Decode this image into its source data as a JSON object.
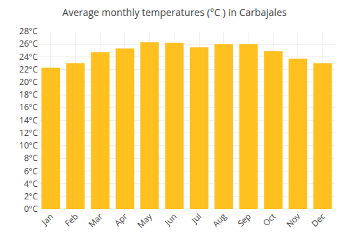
{
  "chart_data": {
    "type": "bar",
    "title": "Average monthly temperatures (°C ) in Carbajales",
    "categories": [
      "Jan",
      "Feb",
      "Mar",
      "Apr",
      "May",
      "Jun",
      "Jul",
      "Aug",
      "Sep",
      "Oct",
      "Nov",
      "Dec"
    ],
    "values": [
      22.3,
      23.0,
      24.7,
      25.3,
      26.3,
      26.2,
      25.5,
      26.0,
      26.0,
      24.9,
      23.7,
      23.0
    ],
    "color": "#FFC020",
    "ylim": [
      0,
      28
    ],
    "yticks": [
      {
        "value": 0,
        "label": "0°C"
      },
      {
        "value": 2,
        "label": "2°C"
      },
      {
        "value": 4,
        "label": "4°C"
      },
      {
        "value": 6,
        "label": "6°C"
      },
      {
        "value": 8,
        "label": "8°C"
      },
      {
        "value": 10,
        "label": "10°C"
      },
      {
        "value": 12,
        "label": "12°C"
      },
      {
        "value": 14,
        "label": "14°C"
      },
      {
        "value": 16,
        "label": "16°C"
      },
      {
        "value": 18,
        "label": "18°C"
      },
      {
        "value": 20,
        "label": "20°C"
      },
      {
        "value": 22,
        "label": "22°C"
      },
      {
        "value": 24,
        "label": "24°C"
      },
      {
        "value": 26,
        "label": "26°C"
      },
      {
        "value": 28,
        "label": "28°C"
      }
    ],
    "grid": true
  }
}
